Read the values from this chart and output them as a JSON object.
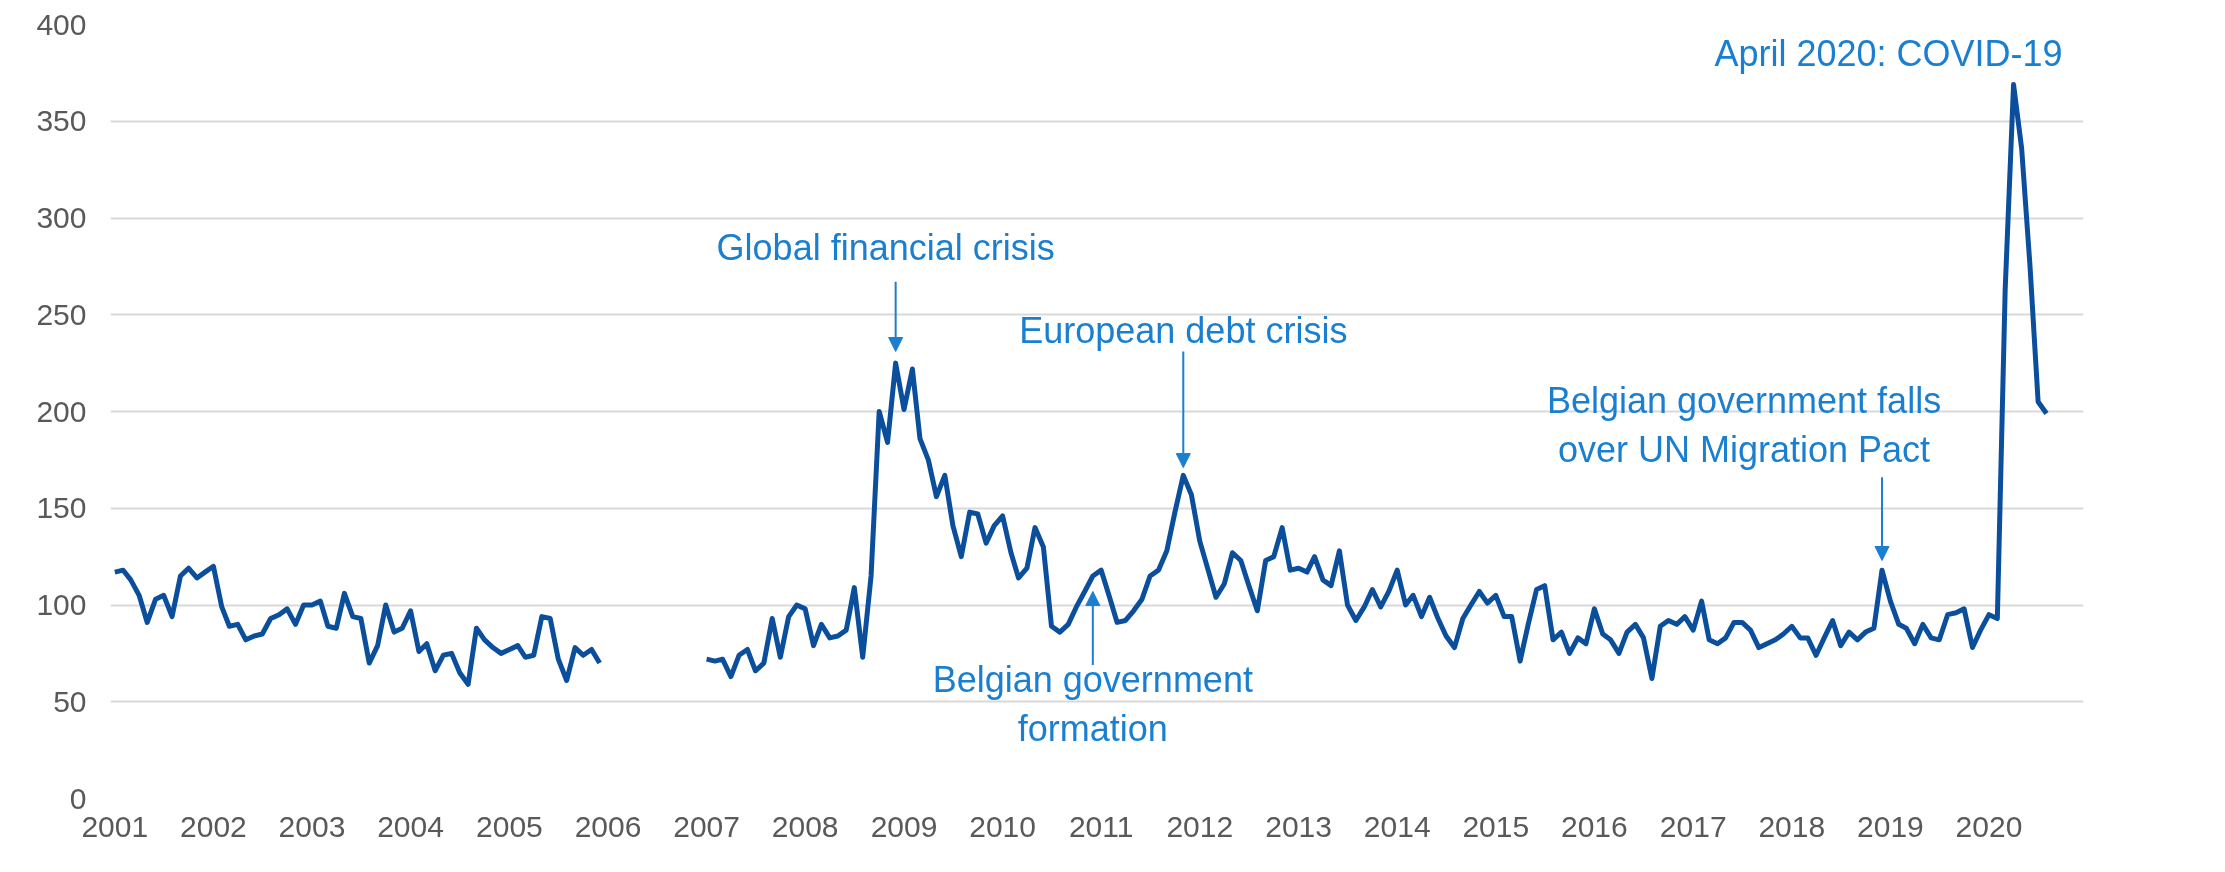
{
  "chart_data": {
    "type": "line",
    "x": [
      "2001-01",
      "2001-02",
      "2001-03",
      "2001-04",
      "2001-05",
      "2001-06",
      "2001-07",
      "2001-08",
      "2001-09",
      "2001-10",
      "2001-11",
      "2001-12",
      "2002-01",
      "2002-02",
      "2002-03",
      "2002-04",
      "2002-05",
      "2002-06",
      "2002-07",
      "2002-08",
      "2002-09",
      "2002-10",
      "2002-11",
      "2002-12",
      "2003-01",
      "2003-02",
      "2003-03",
      "2003-04",
      "2003-05",
      "2003-06",
      "2003-07",
      "2003-08",
      "2003-09",
      "2003-10",
      "2003-11",
      "2003-12",
      "2004-01",
      "2004-02",
      "2004-03",
      "2004-04",
      "2004-05",
      "2004-06",
      "2004-07",
      "2004-08",
      "2004-09",
      "2004-10",
      "2004-11",
      "2004-12",
      "2005-01",
      "2005-02",
      "2005-03",
      "2005-04",
      "2005-05",
      "2005-06",
      "2005-07",
      "2005-08",
      "2005-09",
      "2005-10",
      "2005-11",
      "2005-12",
      "2006-01",
      "2006-02",
      "2006-03",
      "2006-04",
      "2006-05",
      "2006-06",
      "2006-07",
      "2006-08",
      "2006-09",
      "2006-10",
      "2006-11",
      "2006-12",
      "2007-01",
      "2007-02",
      "2007-03",
      "2007-04",
      "2007-05",
      "2007-06",
      "2007-07",
      "2007-08",
      "2007-09",
      "2007-10",
      "2007-11",
      "2007-12",
      "2008-01",
      "2008-02",
      "2008-03",
      "2008-04",
      "2008-05",
      "2008-06",
      "2008-07",
      "2008-08",
      "2008-09",
      "2008-10",
      "2008-11",
      "2008-12",
      "2009-01",
      "2009-02",
      "2009-03",
      "2009-04",
      "2009-05",
      "2009-06",
      "2009-07",
      "2009-08",
      "2009-09",
      "2009-10",
      "2009-11",
      "2009-12",
      "2010-01",
      "2010-02",
      "2010-03",
      "2010-04",
      "2010-05",
      "2010-06",
      "2010-07",
      "2010-08",
      "2010-09",
      "2010-10",
      "2010-11",
      "2010-12",
      "2011-01",
      "2011-02",
      "2011-03",
      "2011-04",
      "2011-05",
      "2011-06",
      "2011-07",
      "2011-08",
      "2011-09",
      "2011-10",
      "2011-11",
      "2011-12",
      "2012-01",
      "2012-02",
      "2012-03",
      "2012-04",
      "2012-05",
      "2012-06",
      "2012-07",
      "2012-08",
      "2012-09",
      "2012-10",
      "2012-11",
      "2012-12",
      "2013-01",
      "2013-02",
      "2013-03",
      "2013-04",
      "2013-05",
      "2013-06",
      "2013-07",
      "2013-08",
      "2013-09",
      "2013-10",
      "2013-11",
      "2013-12",
      "2014-01",
      "2014-02",
      "2014-03",
      "2014-04",
      "2014-05",
      "2014-06",
      "2014-07",
      "2014-08",
      "2014-09",
      "2014-10",
      "2014-11",
      "2014-12",
      "2015-01",
      "2015-02",
      "2015-03",
      "2015-04",
      "2015-05",
      "2015-06",
      "2015-07",
      "2015-08",
      "2015-09",
      "2015-10",
      "2015-11",
      "2015-12",
      "2016-01",
      "2016-02",
      "2016-03",
      "2016-04",
      "2016-05",
      "2016-06",
      "2016-07",
      "2016-08",
      "2016-09",
      "2016-10",
      "2016-11",
      "2016-12",
      "2017-01",
      "2017-02",
      "2017-03",
      "2017-04",
      "2017-05",
      "2017-06",
      "2017-07",
      "2017-08",
      "2017-09",
      "2017-10",
      "2017-11",
      "2017-12",
      "2018-01",
      "2018-02",
      "2018-03",
      "2018-04",
      "2018-05",
      "2018-06",
      "2018-07",
      "2018-08",
      "2018-09",
      "2018-10",
      "2018-11",
      "2018-12",
      "2019-01",
      "2019-02",
      "2019-03",
      "2019-04",
      "2019-05",
      "2019-06",
      "2019-07",
      "2019-08",
      "2019-09",
      "2019-10",
      "2019-11",
      "2019-12",
      "2020-01",
      "2020-02",
      "2020-03",
      "2020-04",
      "2020-05",
      "2020-06",
      "2020-07",
      "2020-08"
    ],
    "values": [
      117,
      118,
      113,
      105,
      91,
      103,
      105,
      94,
      115,
      119,
      114,
      117,
      120,
      99,
      89,
      90,
      82,
      84,
      85,
      93,
      95,
      98,
      90,
      100,
      100,
      102,
      89,
      88,
      106,
      94,
      93,
      70,
      79,
      100,
      86,
      88,
      97,
      76,
      80,
      66,
      74,
      75,
      65,
      59,
      88,
      82,
      78,
      75,
      77,
      79,
      73,
      74,
      94,
      93,
      72,
      61,
      78,
      74,
      77,
      70,
      null,
      null,
      null,
      null,
      null,
      null,
      null,
      null,
      null,
      null,
      null,
      null,
      72,
      71,
      72,
      63,
      74,
      77,
      66,
      70,
      93,
      73,
      94,
      100,
      98,
      79,
      90,
      83,
      84,
      87,
      109,
      73,
      115,
      200,
      184,
      225,
      201,
      222,
      186,
      175,
      156,
      167,
      141,
      125,
      148,
      147,
      132,
      141,
      146,
      127,
      114,
      119,
      140,
      130,
      89,
      86,
      90,
      99,
      107,
      115,
      118,
      104,
      91,
      92,
      97,
      103,
      115,
      118,
      128,
      148,
      167,
      157,
      133,
      118,
      104,
      111,
      127,
      123,
      110,
      97,
      123,
      125,
      140,
      118,
      119,
      117,
      125,
      113,
      110,
      128,
      100,
      92,
      99,
      108,
      99,
      107,
      118,
      100,
      105,
      94,
      104,
      93,
      84,
      78,
      93,
      100,
      107,
      101,
      105,
      94,
      94,
      71,
      90,
      108,
      110,
      82,
      86,
      75,
      83,
      80,
      98,
      85,
      82,
      75,
      86,
      90,
      83,
      62,
      89,
      92,
      90,
      94,
      87,
      102,
      82,
      80,
      83,
      91,
      91,
      87,
      78,
      80,
      82,
      85,
      89,
      83,
      83,
      74,
      83,
      92,
      79,
      86,
      82,
      86,
      88,
      118,
      102,
      90,
      88,
      80,
      90,
      83,
      82,
      95,
      96,
      98,
      78,
      87,
      95,
      93,
      263,
      369,
      336,
      275,
      205,
      199
    ],
    "color": "#0b4f9c",
    "xlim": [
      "2000-12-16",
      "2020-12-16"
    ],
    "xticks": [
      "2001",
      "2002",
      "2003",
      "2004",
      "2005",
      "2006",
      "2007",
      "2008",
      "2009",
      "2010",
      "2011",
      "2012",
      "2013",
      "2014",
      "2015",
      "2016",
      "2017",
      "2018",
      "2019",
      "2020"
    ],
    "ylim": [
      0,
      400
    ],
    "yticks": [
      0,
      50,
      100,
      150,
      200,
      250,
      300,
      350,
      400
    ],
    "grid": "y",
    "line_style": "solid",
    "marker": "none",
    "annotations": [
      {
        "text": "Global financial crisis",
        "x": "2008-12",
        "y": 225
      },
      {
        "text": "European debt crisis",
        "x": "2011-11",
        "y": 167
      },
      {
        "text": "Belgian government formation",
        "x": "2010-12",
        "y": 115
      },
      {
        "text": "Belgian government falls over UN Migration Pact",
        "x": "2018-12",
        "y": 118
      },
      {
        "text": "April 2020: COVID-19",
        "x": "2020-04",
        "y": 369
      }
    ]
  }
}
